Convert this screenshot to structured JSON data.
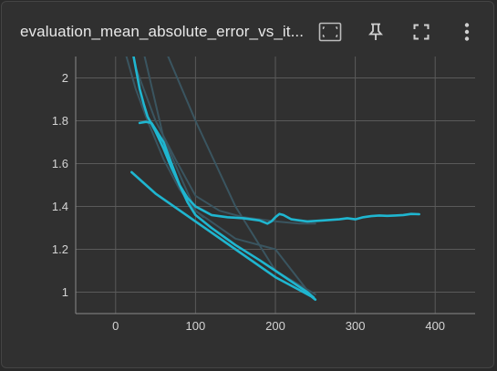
{
  "card": {
    "title": "evaluation_mean_absolute_error_vs_it..."
  },
  "toolbar": {
    "icons": [
      "fit-domain-icon",
      "pin-icon",
      "fullscreen-icon",
      "more-vert-icon"
    ]
  },
  "colors": {
    "background": "#303030",
    "grid": "#5a5a5a",
    "primary_series": "#1fb6d0",
    "faded_series": "#3a5560",
    "tick_text": "#d4d4d4"
  },
  "chart_data": {
    "type": "line",
    "title": "evaluation_mean_absolute_error_vs_it...",
    "xlabel": "",
    "ylabel": "",
    "xlim": [
      -50,
      450
    ],
    "ylim": [
      0.9,
      2.1
    ],
    "x_ticks": [
      0,
      100,
      200,
      300,
      400
    ],
    "y_ticks": [
      1,
      1.2,
      1.4,
      1.6,
      1.8,
      2
    ],
    "x_tick_labels": [
      "0",
      "100",
      "200",
      "300",
      "400"
    ],
    "y_tick_labels": [
      "1",
      "1.2",
      "1.4",
      "1.6",
      "1.8",
      "2"
    ],
    "grid": true,
    "legend": "none",
    "series": [
      {
        "style": "faded",
        "x": [
          12,
          25,
          40,
          60,
          80,
          100,
          110
        ],
        "y": [
          2.12,
          1.95,
          1.8,
          1.62,
          1.48,
          1.38,
          1.35
        ]
      },
      {
        "style": "faded",
        "x": [
          25,
          50,
          75,
          100,
          130,
          160,
          200,
          230,
          250
        ],
        "y": [
          2.05,
          1.8,
          1.62,
          1.45,
          1.38,
          1.35,
          1.33,
          1.32,
          1.32
        ]
      },
      {
        "style": "faded",
        "x": [
          60,
          100,
          150,
          200,
          250
        ],
        "y": [
          2.15,
          1.8,
          1.4,
          1.1,
          0.99
        ]
      },
      {
        "style": "faded",
        "x": [
          35,
          60,
          100,
          150,
          200,
          248
        ],
        "y": [
          2.12,
          1.72,
          1.38,
          1.25,
          1.2,
          0.97
        ]
      },
      {
        "style": "primary",
        "x": [
          20,
          25,
          30,
          35,
          40,
          50,
          60,
          70,
          80,
          90,
          100,
          110,
          120,
          140,
          160,
          180,
          190,
          195,
          200,
          205,
          210,
          220,
          230,
          240,
          260,
          280,
          290,
          300,
          310,
          320,
          330,
          340,
          350,
          360,
          370,
          380
        ],
        "y": [
          2.15,
          2.05,
          1.95,
          1.88,
          1.82,
          1.75,
          1.67,
          1.58,
          1.5,
          1.44,
          1.4,
          1.38,
          1.36,
          1.35,
          1.345,
          1.335,
          1.32,
          1.33,
          1.35,
          1.365,
          1.36,
          1.34,
          1.335,
          1.33,
          1.335,
          1.34,
          1.345,
          1.34,
          1.35,
          1.355,
          1.358,
          1.356,
          1.358,
          1.36,
          1.365,
          1.364
        ]
      },
      {
        "style": "primary",
        "x": [
          30,
          38,
          45,
          50,
          60,
          70,
          80,
          90,
          100,
          120,
          150,
          180,
          200,
          220,
          240,
          248
        ],
        "y": [
          1.79,
          1.795,
          1.79,
          1.76,
          1.7,
          1.6,
          1.5,
          1.42,
          1.36,
          1.3,
          1.22,
          1.15,
          1.1,
          1.05,
          1.0,
          0.975
        ]
      },
      {
        "style": "primary",
        "x": [
          20,
          50,
          100,
          150,
          200,
          230,
          245,
          250
        ],
        "y": [
          1.56,
          1.46,
          1.33,
          1.2,
          1.07,
          1.01,
          0.98,
          0.965
        ]
      }
    ]
  }
}
